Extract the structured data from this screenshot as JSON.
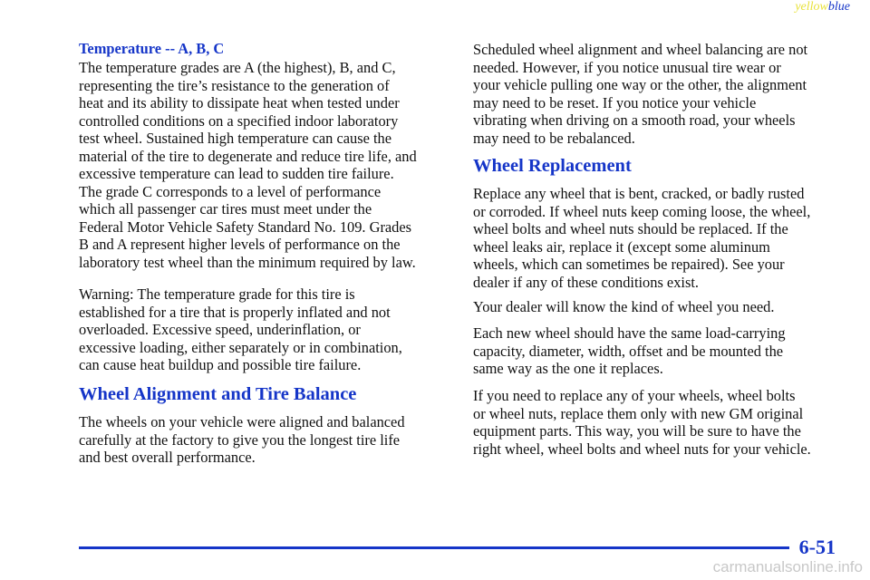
{
  "header": {
    "marker_yellow": "yellow",
    "marker_blue": "blue"
  },
  "left_column": {
    "subheading": "Temperature -- A, B, C",
    "paragraphs": [
      [
        "The temperature grades are A (the highest), B, and C,",
        "representing the tire’s resistance to the generation of",
        "heat and its ability to dissipate heat when tested under",
        "controlled conditions on a specified indoor laboratory",
        "test wheel. Sustained high temperature can cause the",
        "material of the tire to degenerate and reduce tire life, and",
        "excessive temperature can lead to sudden tire failure.",
        "The grade C corresponds to a level of performance",
        "which all passenger car tires must meet under the",
        "Federal Motor Vehicle Safety Standard No. 109. Grades",
        "B and A represent higher levels of performance on the",
        "laboratory test wheel than the minimum required by law."
      ],
      [
        "Warning: The temperature grade for this tire is",
        "established for a tire that is properly inflated and not",
        "overloaded. Excessive speed, underinflation, or",
        "excessive loading, either separately or in combination,",
        "can cause heat buildup and possible tire failure."
      ]
    ],
    "heading": "Wheel Alignment and Tire Balance",
    "after_heading": [
      [
        "The wheels on your vehicle were aligned and balanced",
        "carefully at the factory to give you the longest tire life",
        "and best overall performance."
      ]
    ]
  },
  "right_column": {
    "paragraphs": [
      [
        "Scheduled wheel alignment and wheel balancing are not",
        "needed. However, if you notice unusual tire wear or",
        "your vehicle pulling one way or the other, the alignment",
        "may need to be reset. If you notice your vehicle",
        "vibrating when driving on a smooth road, your wheels",
        "may need to be rebalanced."
      ]
    ],
    "heading": "Wheel Replacement",
    "after_heading": [
      [
        "Replace any wheel that is bent, cracked, or badly rusted",
        "or corroded. If wheel nuts keep coming loose, the wheel,",
        "wheel bolts and wheel nuts should be replaced. If the",
        "wheel leaks air, replace it (except some aluminum",
        "wheels, which can sometimes be repaired). See your",
        "dealer if any of these conditions exist."
      ],
      [
        "Your dealer will know the kind of wheel you need."
      ],
      [
        "Each new wheel should have the same load‑carrying",
        "capacity, diameter, width, offset and be mounted the",
        "same way as the one it replaces."
      ],
      [
        "If you need to replace any of your wheels, wheel bolts",
        "or wheel nuts, replace them only with new GM original",
        "equipment parts. This way, you will be sure to have the",
        "right wheel, wheel bolts and wheel nuts for your vehicle."
      ]
    ]
  },
  "footer": {
    "page_number": "6-51",
    "watermark": "carmanualsonline.info"
  }
}
